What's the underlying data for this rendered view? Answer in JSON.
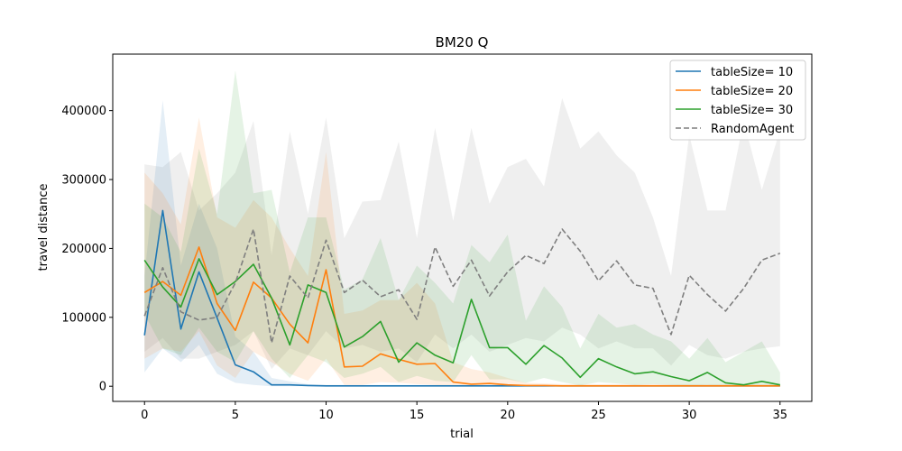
{
  "chart_data": {
    "type": "line",
    "title": "BM20  Q",
    "xlabel": "trial",
    "ylabel": "travel distance",
    "xlim": [
      -1.75,
      36.75
    ],
    "ylim": [
      -22000,
      482000
    ],
    "xticks": [
      0,
      5,
      10,
      15,
      20,
      25,
      30,
      35
    ],
    "yticks": [
      0,
      100000,
      200000,
      300000,
      400000
    ],
    "grid": false,
    "legend": "top-right",
    "x": [
      0,
      1,
      2,
      3,
      4,
      5,
      6,
      7,
      8,
      9,
      10,
      11,
      12,
      13,
      14,
      15,
      16,
      17,
      18,
      19,
      20,
      21,
      22,
      23,
      24,
      25,
      26,
      27,
      28,
      29,
      30,
      31,
      32,
      33,
      34,
      35
    ],
    "series": [
      {
        "name": "tableSize= 10",
        "color": "#1f77b4",
        "style": "solid",
        "values": [
          74000,
          255000,
          83000,
          166000,
          99000,
          31000,
          21000,
          2000,
          2000,
          1000,
          500,
          500,
          500,
          500,
          500,
          500,
          500,
          500,
          500,
          500,
          500,
          500,
          500,
          500,
          500,
          500,
          500,
          500,
          500,
          500,
          500,
          500,
          500,
          500,
          500,
          500
        ],
        "upper": [
          160000,
          415000,
          175000,
          265000,
          200000,
          72000,
          50000,
          12000,
          7000,
          3000,
          2000,
          2000,
          2000,
          2000,
          2000,
          2000,
          2000,
          2000,
          2000,
          2000,
          2000,
          2000,
          2000,
          2000,
          2000,
          2000,
          2000,
          2000,
          2000,
          2000,
          2000,
          2000,
          2000,
          2000,
          2000,
          2000
        ],
        "lower": [
          20000,
          55000,
          35000,
          60000,
          18000,
          5000,
          2000,
          0,
          0,
          0,
          0,
          0,
          0,
          0,
          0,
          0,
          0,
          0,
          0,
          0,
          0,
          0,
          0,
          0,
          0,
          0,
          0,
          0,
          0,
          0,
          0,
          0,
          0,
          0,
          0,
          0
        ]
      },
      {
        "name": "tableSize= 20",
        "color": "#ff7f0e",
        "style": "solid",
        "values": [
          136000,
          152000,
          132000,
          202000,
          120000,
          81000,
          151000,
          128000,
          90000,
          63000,
          169000,
          28000,
          29000,
          47000,
          39000,
          32000,
          33000,
          6000,
          3000,
          4000,
          2000,
          1000,
          1000,
          500,
          500,
          500,
          500,
          500,
          500,
          500,
          500,
          500,
          500,
          500,
          500,
          500
        ],
        "upper": [
          310000,
          280000,
          235000,
          390000,
          245000,
          230000,
          270000,
          245000,
          200000,
          160000,
          340000,
          105000,
          110000,
          125000,
          125000,
          150000,
          120000,
          35000,
          25000,
          20000,
          12000,
          5000,
          4000,
          3000,
          3000,
          3000,
          3000,
          3000,
          3000,
          3000,
          3000,
          3000,
          3000,
          3000,
          3000,
          3000
        ],
        "lower": [
          40000,
          55000,
          50000,
          80000,
          30000,
          12000,
          50000,
          35000,
          18000,
          8000,
          40000,
          2000,
          2000,
          6000,
          5000,
          3000,
          2000,
          0,
          0,
          0,
          0,
          0,
          0,
          0,
          0,
          0,
          0,
          0,
          0,
          0,
          0,
          0,
          0,
          0,
          0,
          0
        ]
      },
      {
        "name": "tableSize= 30",
        "color": "#2ca02c",
        "style": "solid",
        "values": [
          183000,
          144000,
          115000,
          185000,
          133000,
          152000,
          177000,
          128000,
          60000,
          147000,
          136000,
          57000,
          72000,
          94000,
          35000,
          63000,
          45000,
          34000,
          126000,
          56000,
          56000,
          32000,
          59000,
          41000,
          13000,
          40000,
          28000,
          18000,
          21000,
          14000,
          8000,
          20000,
          5000,
          2000,
          7000,
          2000
        ],
        "upper": [
          265000,
          245000,
          195000,
          345000,
          250000,
          458000,
          280000,
          285000,
          165000,
          245000,
          245000,
          140000,
          155000,
          215000,
          125000,
          175000,
          150000,
          120000,
          205000,
          180000,
          220000,
          95000,
          145000,
          115000,
          55000,
          105000,
          85000,
          90000,
          75000,
          65000,
          40000,
          70000,
          35000,
          50000,
          65000,
          20000
        ],
        "lower": [
          105000,
          55000,
          45000,
          85000,
          50000,
          35000,
          80000,
          40000,
          12000,
          45000,
          35000,
          12000,
          18000,
          28000,
          6000,
          15000,
          8000,
          6000,
          45000,
          10000,
          10000,
          5000,
          12000,
          6000,
          1000,
          6000,
          4000,
          2000,
          3000,
          2000,
          1000,
          2000,
          0,
          0,
          0,
          0
        ]
      },
      {
        "name": "RandomAgent",
        "color": "#7f7f7f",
        "style": "dashed",
        "values": [
          102000,
          172000,
          108000,
          96000,
          100000,
          150000,
          228000,
          63000,
          160000,
          128000,
          212000,
          136000,
          154000,
          130000,
          140000,
          97000,
          202000,
          145000,
          183000,
          131000,
          166000,
          190000,
          178000,
          228000,
          196000,
          153000,
          182000,
          147000,
          142000,
          75000,
          161000,
          133000,
          109000,
          142000,
          183000,
          193000
        ],
        "upper": [
          322000,
          318000,
          340000,
          255000,
          280000,
          310000,
          385000,
          190000,
          370000,
          250000,
          390000,
          215000,
          268000,
          270000,
          355000,
          215000,
          375000,
          240000,
          375000,
          265000,
          318000,
          330000,
          290000,
          418000,
          345000,
          370000,
          335000,
          310000,
          245000,
          160000,
          365000,
          255000,
          255000,
          385000,
          285000,
          372000
        ],
        "lower": [
          50000,
          70000,
          40000,
          40000,
          50000,
          60000,
          80000,
          25000,
          55000,
          45000,
          80000,
          55000,
          60000,
          50000,
          55000,
          35000,
          75000,
          55000,
          75000,
          50000,
          60000,
          70000,
          65000,
          85000,
          75000,
          55000,
          65000,
          55000,
          55000,
          30000,
          60000,
          45000,
          40000,
          50000,
          55000,
          58000
        ]
      }
    ]
  }
}
